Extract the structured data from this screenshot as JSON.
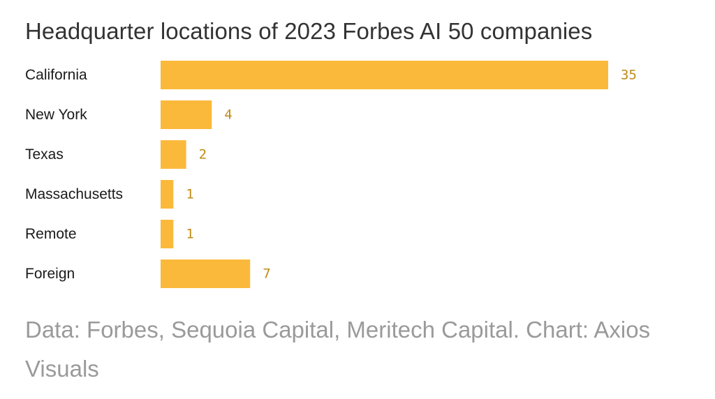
{
  "title": "Headquarter locations of 2023 Forbes AI 50 companies",
  "source": "Data: Forbes, Sequoia Capital, Meritech Capital. Chart: Axios Visuals",
  "colors": {
    "bar": "#fbb93b",
    "value_label": "#c08a16",
    "title": "#333333",
    "source": "#9a9a9a"
  },
  "chart_data": {
    "type": "bar",
    "orientation": "horizontal",
    "categories": [
      "California",
      "New York",
      "Texas",
      "Massachusetts",
      "Remote",
      "Foreign"
    ],
    "values": [
      35,
      4,
      2,
      1,
      1,
      7
    ],
    "title": "Headquarter locations of 2023 Forbes AI 50 companies",
    "xlabel": "",
    "ylabel": "",
    "xlim": [
      0,
      35
    ],
    "grid": false,
    "legend": "none"
  }
}
